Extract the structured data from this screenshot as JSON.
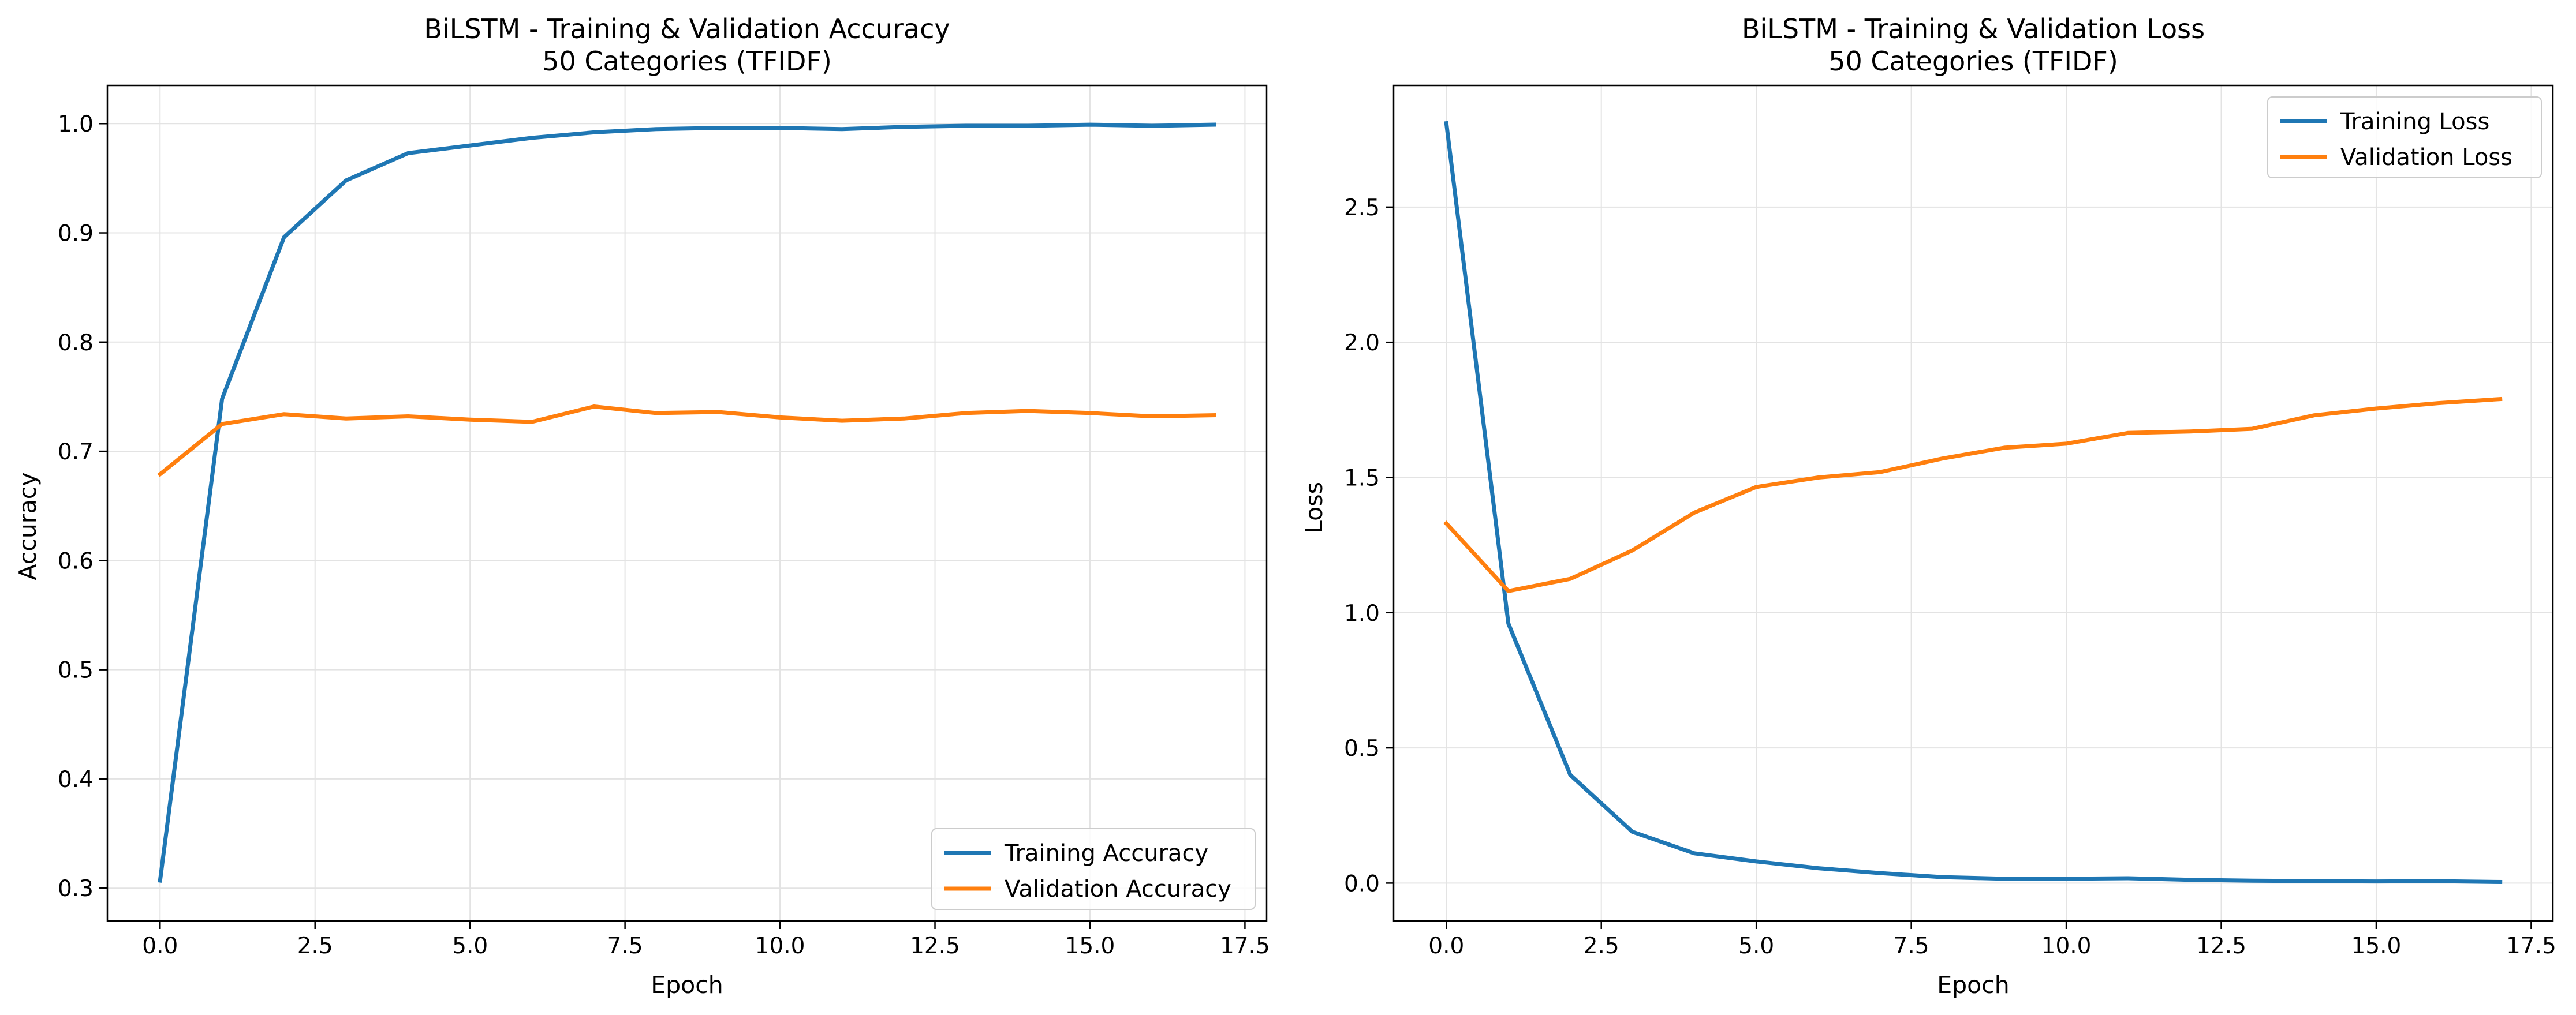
{
  "chart_data": [
    {
      "type": "line",
      "title": "BiLSTM - Training & Validation Accuracy",
      "subtitle": "50 Categories (TFIDF)",
      "xlabel": "Epoch",
      "ylabel": "Accuracy",
      "xlim": [
        -0.85,
        17.85
      ],
      "ylim": [
        0.27,
        1.035
      ],
      "xticks": [
        0.0,
        2.5,
        5.0,
        7.5,
        10.0,
        12.5,
        15.0,
        17.5
      ],
      "xtick_labels": [
        "0.0",
        "2.5",
        "5.0",
        "7.5",
        "10.0",
        "12.5",
        "15.0",
        "17.5"
      ],
      "yticks": [
        0.3,
        0.4,
        0.5,
        0.6,
        0.7,
        0.8,
        0.9,
        1.0
      ],
      "ytick_labels": [
        "0.3",
        "0.4",
        "0.5",
        "0.6",
        "0.7",
        "0.8",
        "0.9",
        "1.0"
      ],
      "grid": true,
      "legend_position": "bottom-right",
      "x": [
        0,
        1,
        2,
        3,
        4,
        5,
        6,
        7,
        8,
        9,
        10,
        11,
        12,
        13,
        14,
        15,
        16,
        17
      ],
      "series": [
        {
          "name": "Training Accuracy",
          "color": "#1f77b4",
          "values": [
            0.307,
            0.748,
            0.896,
            0.948,
            0.973,
            0.98,
            0.987,
            0.992,
            0.995,
            0.996,
            0.996,
            0.995,
            0.997,
            0.998,
            0.998,
            0.999,
            0.998,
            0.999
          ]
        },
        {
          "name": "Validation Accuracy",
          "color": "#ff7f0e",
          "values": [
            0.679,
            0.725,
            0.734,
            0.73,
            0.732,
            0.729,
            0.727,
            0.741,
            0.735,
            0.736,
            0.731,
            0.728,
            0.73,
            0.735,
            0.737,
            0.735,
            0.732,
            0.733
          ]
        }
      ]
    },
    {
      "type": "line",
      "title": "BiLSTM - Training & Validation Loss",
      "subtitle": "50 Categories (TFIDF)",
      "xlabel": "Epoch",
      "ylabel": "Loss",
      "xlim": [
        -0.85,
        17.85
      ],
      "ylim": [
        -0.14,
        2.95
      ],
      "xticks": [
        0.0,
        2.5,
        5.0,
        7.5,
        10.0,
        12.5,
        15.0,
        17.5
      ],
      "xtick_labels": [
        "0.0",
        "2.5",
        "5.0",
        "7.5",
        "10.0",
        "12.5",
        "15.0",
        "17.5"
      ],
      "yticks": [
        0.0,
        0.5,
        1.0,
        1.5,
        2.0,
        2.5
      ],
      "ytick_labels": [
        "0.0",
        "0.5",
        "1.0",
        "1.5",
        "2.0",
        "2.5"
      ],
      "grid": true,
      "legend_position": "top-right",
      "x": [
        0,
        1,
        2,
        3,
        4,
        5,
        6,
        7,
        8,
        9,
        10,
        11,
        12,
        13,
        14,
        15,
        16,
        17
      ],
      "series": [
        {
          "name": "Training Loss",
          "color": "#1f77b4",
          "values": [
            2.81,
            0.96,
            0.4,
            0.19,
            0.11,
            0.08,
            0.055,
            0.037,
            0.022,
            0.016,
            0.016,
            0.018,
            0.012,
            0.009,
            0.007,
            0.006,
            0.007,
            0.004
          ]
        },
        {
          "name": "Validation Loss",
          "color": "#ff7f0e",
          "values": [
            1.33,
            1.08,
            1.125,
            1.23,
            1.37,
            1.465,
            1.5,
            1.52,
            1.57,
            1.61,
            1.625,
            1.665,
            1.67,
            1.68,
            1.73,
            1.755,
            1.775,
            1.79
          ]
        }
      ]
    }
  ]
}
